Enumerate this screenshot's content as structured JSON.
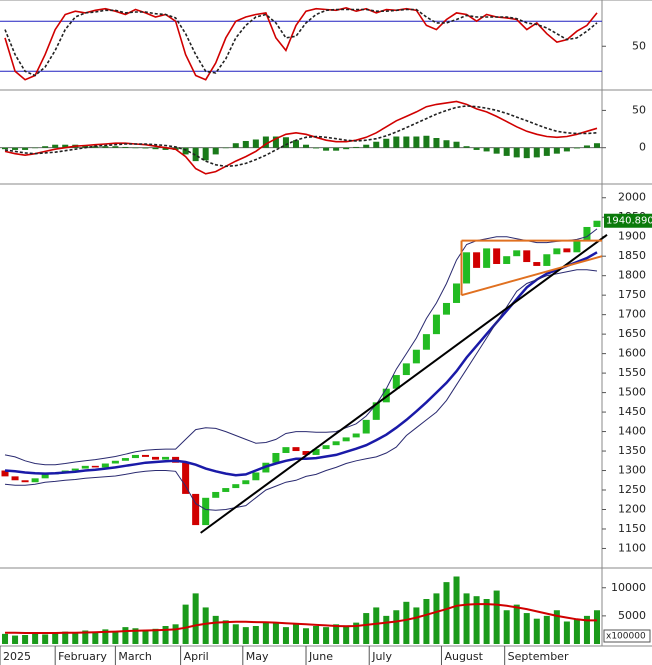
{
  "chart_data": [
    {
      "type": "line",
      "ylim": [
        0,
        103
      ],
      "yticks": [
        50
      ],
      "hlines": [
        20,
        80
      ],
      "hline_color": "#2020c0",
      "series": [
        {
          "color": "#d00000",
          "style": "solid",
          "values": [
            60,
            20,
            10,
            15,
            40,
            70,
            88,
            92,
            90,
            93,
            95,
            92,
            88,
            94,
            90,
            85,
            88,
            80,
            40,
            15,
            10,
            30,
            60,
            80,
            85,
            88,
            90,
            60,
            45,
            75,
            92,
            95,
            94,
            93,
            96,
            92,
            95,
            90,
            94,
            93,
            95,
            93,
            75,
            70,
            82,
            90,
            88,
            80,
            88,
            85,
            84,
            82,
            70,
            78,
            65,
            55,
            58,
            68,
            75,
            90
          ]
        },
        {
          "color": "#222222",
          "style": "dashed",
          "values": [
            70,
            40,
            20,
            15,
            25,
            45,
            70,
            85,
            90,
            91,
            93,
            93,
            90,
            91,
            91,
            89,
            88,
            84,
            65,
            40,
            20,
            18,
            35,
            60,
            75,
            85,
            88,
            78,
            60,
            62,
            78,
            88,
            93,
            94,
            94,
            94,
            94,
            92,
            92,
            93,
            94,
            94,
            85,
            78,
            78,
            82,
            87,
            85,
            85,
            85,
            85,
            83,
            78,
            76,
            72,
            65,
            58,
            60,
            68,
            78
          ]
        }
      ]
    },
    {
      "type": "line",
      "ylim": [
        -46,
        72
      ],
      "yticks": [
        0,
        50
      ],
      "series": [
        {
          "kind": "bar",
          "color": "#1a7a1a",
          "neg_color": "#1a7a1a",
          "values": [
            -2,
            -3,
            -3,
            0,
            2,
            4,
            4,
            4,
            3,
            2,
            2,
            2,
            1,
            0,
            -1,
            -2,
            -3,
            -3,
            -9,
            -18,
            -17,
            -9,
            0,
            6,
            9,
            11,
            15,
            15,
            14,
            10,
            4,
            -1,
            -4,
            -4,
            -2,
            1,
            4,
            8,
            12,
            15,
            15,
            15,
            16,
            13,
            10,
            8,
            2,
            -3,
            -5,
            -8,
            -11,
            -13,
            -14,
            -13,
            -11,
            -8,
            -5,
            -1,
            3,
            6
          ]
        },
        {
          "color": "#d00000",
          "style": "solid",
          "values": [
            -5,
            -8,
            -10,
            -8,
            -5,
            -2,
            0,
            2,
            3,
            4,
            5,
            6,
            6,
            5,
            4,
            2,
            0,
            -2,
            -12,
            -28,
            -35,
            -32,
            -25,
            -18,
            -12,
            -5,
            5,
            12,
            18,
            20,
            18,
            14,
            10,
            8,
            8,
            10,
            14,
            20,
            28,
            36,
            42,
            48,
            55,
            58,
            60,
            62,
            58,
            52,
            48,
            42,
            35,
            28,
            22,
            18,
            15,
            14,
            15,
            18,
            22,
            26
          ]
        },
        {
          "color": "#222222",
          "style": "dashed",
          "values": [
            -3,
            -5,
            -7,
            -8,
            -7,
            -6,
            -4,
            -2,
            0,
            2,
            3,
            4,
            5,
            5,
            5,
            4,
            3,
            1,
            -3,
            -10,
            -18,
            -23,
            -25,
            -24,
            -21,
            -16,
            -10,
            -3,
            4,
            10,
            14,
            15,
            14,
            12,
            10,
            9,
            10,
            12,
            16,
            21,
            27,
            33,
            39,
            45,
            50,
            54,
            56,
            55,
            53,
            50,
            46,
            41,
            36,
            31,
            26,
            22,
            20,
            19,
            19,
            20
          ]
        }
      ]
    },
    {
      "type": "candlestick",
      "ylim": [
        1055,
        2025
      ],
      "yticks": [
        1100,
        1150,
        1200,
        1250,
        1300,
        1350,
        1400,
        1450,
        1500,
        1550,
        1600,
        1650,
        1700,
        1750,
        1800,
        1850,
        1900,
        1950,
        2000
      ],
      "up_color": "#22bb22",
      "down_color": "#d00000",
      "open": [
        1300,
        1285,
        1275,
        1270,
        1280,
        1290,
        1295,
        1300,
        1305,
        1312,
        1308,
        1318,
        1325,
        1332,
        1340,
        1335,
        1328,
        1335,
        1320,
        1240,
        1160,
        1230,
        1245,
        1255,
        1265,
        1275,
        1295,
        1320,
        1345,
        1360,
        1350,
        1340,
        1355,
        1365,
        1375,
        1385,
        1395,
        1430,
        1475,
        1510,
        1545,
        1575,
        1610,
        1650,
        1700,
        1730,
        1780,
        1860,
        1820,
        1870,
        1830,
        1850,
        1865,
        1835,
        1825,
        1855,
        1870,
        1860,
        1890,
        1925
      ],
      "close": [
        1285,
        1275,
        1270,
        1280,
        1290,
        1295,
        1300,
        1305,
        1312,
        1308,
        1318,
        1325,
        1332,
        1340,
        1335,
        1328,
        1335,
        1320,
        1240,
        1160,
        1230,
        1245,
        1255,
        1265,
        1275,
        1295,
        1320,
        1345,
        1360,
        1350,
        1340,
        1355,
        1365,
        1375,
        1385,
        1395,
        1430,
        1475,
        1510,
        1545,
        1575,
        1610,
        1650,
        1700,
        1730,
        1780,
        1860,
        1820,
        1870,
        1830,
        1850,
        1865,
        1835,
        1825,
        1855,
        1870,
        1860,
        1890,
        1925,
        1941
      ],
      "series": [
        {
          "color": "#1a1aa8",
          "width": 2.5,
          "values": [
            1300,
            1298,
            1295,
            1293,
            1292,
            1293,
            1295,
            1297,
            1300,
            1302,
            1305,
            1308,
            1312,
            1316,
            1320,
            1322,
            1324,
            1325,
            1322,
            1315,
            1305,
            1298,
            1292,
            1288,
            1290,
            1300,
            1310,
            1318,
            1325,
            1330,
            1330,
            1332,
            1336,
            1340,
            1348,
            1356,
            1365,
            1378,
            1392,
            1410,
            1430,
            1452,
            1475,
            1500,
            1525,
            1555,
            1590,
            1620,
            1650,
            1680,
            1710,
            1740,
            1770,
            1790,
            1805,
            1815,
            1825,
            1835,
            1845,
            1860
          ]
        },
        {
          "color": "#2a2a70",
          "width": 1,
          "values": [
            1340,
            1335,
            1325,
            1318,
            1315,
            1315,
            1318,
            1322,
            1325,
            1328,
            1332,
            1336,
            1342,
            1348,
            1352,
            1354,
            1355,
            1355,
            1380,
            1405,
            1410,
            1408,
            1400,
            1390,
            1380,
            1370,
            1372,
            1380,
            1395,
            1400,
            1400,
            1398,
            1398,
            1400,
            1410,
            1420,
            1440,
            1470,
            1510,
            1560,
            1600,
            1640,
            1690,
            1730,
            1780,
            1840,
            1880,
            1890,
            1895,
            1900,
            1900,
            1895,
            1890,
            1885,
            1885,
            1888,
            1890,
            1893,
            1900,
            1920
          ]
        },
        {
          "color": "#2a2a70",
          "width": 1,
          "values": [
            1265,
            1262,
            1262,
            1265,
            1270,
            1272,
            1275,
            1277,
            1280,
            1282,
            1284,
            1286,
            1290,
            1295,
            1298,
            1300,
            1300,
            1298,
            1260,
            1215,
            1200,
            1198,
            1200,
            1205,
            1210,
            1230,
            1250,
            1260,
            1270,
            1275,
            1285,
            1290,
            1300,
            1308,
            1318,
            1325,
            1330,
            1335,
            1345,
            1360,
            1390,
            1410,
            1430,
            1450,
            1480,
            1520,
            1560,
            1600,
            1640,
            1680,
            1720,
            1760,
            1780,
            1790,
            1800,
            1805,
            1810,
            1815,
            1815,
            1812
          ]
        }
      ],
      "trendlines": [
        {
          "color": "#000000",
          "width": 2,
          "x": [
            19.5,
            60
          ],
          "y": [
            1140,
            1905
          ]
        },
        {
          "color": "#e07020",
          "width": 2,
          "x": [
            45.5,
            59.5
          ],
          "y": [
            1890,
            1890
          ]
        },
        {
          "color": "#e07020",
          "width": 2,
          "x": [
            45.5,
            59.5
          ],
          "y": [
            1750,
            1850
          ]
        },
        {
          "color": "#e07020",
          "width": 2,
          "x": [
            45.5,
            45.5
          ],
          "y": [
            1750,
            1890
          ]
        }
      ],
      "last_label": "1940.890",
      "last_color": "#0a7a0a"
    },
    {
      "type": "bar",
      "ylim": [
        0,
        12800
      ],
      "yticks": [
        5000,
        10000
      ],
      "unit": "x100000",
      "xlim": [
        -0.5,
        59.5
      ],
      "xticks": [
        {
          "value": -0.5,
          "label": "2025"
        },
        {
          "value": 5,
          "label": "February"
        },
        {
          "value": 11,
          "label": "March"
        },
        {
          "value": 17.5,
          "label": "April"
        },
        {
          "value": 23.7,
          "label": "May"
        },
        {
          "value": 30,
          "label": "June"
        },
        {
          "value": 36.3,
          "label": "July"
        },
        {
          "value": 43.5,
          "label": "August"
        },
        {
          "value": 49.8,
          "label": "September"
        }
      ],
      "series": [
        {
          "kind": "bar",
          "color": "#1a9a1a",
          "neg_color": "#1a9a1a",
          "values": [
            1800,
            1500,
            1600,
            2000,
            1700,
            1900,
            2200,
            2000,
            2400,
            2100,
            2600,
            2300,
            3000,
            2800,
            2500,
            2700,
            3200,
            3500,
            7000,
            9000,
            6500,
            5000,
            4200,
            3500,
            3000,
            3200,
            4000,
            3800,
            3000,
            3500,
            2800,
            3200,
            3000,
            3500,
            3300,
            3800,
            5500,
            6500,
            5000,
            6000,
            7500,
            6500,
            8000,
            9000,
            11000,
            12000,
            9000,
            8500,
            8000,
            9500,
            6000,
            7000,
            5500,
            4500,
            5000,
            6000,
            4000,
            4500,
            5000,
            6000
          ]
        },
        {
          "color": "#d00000",
          "style": "solid",
          "width": 2,
          "values": [
            2000,
            2000,
            1950,
            1950,
            1950,
            1950,
            2000,
            2000,
            2050,
            2100,
            2150,
            2200,
            2300,
            2350,
            2400,
            2450,
            2500,
            2600,
            2900,
            3300,
            3600,
            3800,
            3900,
            3950,
            3950,
            3900,
            3850,
            3800,
            3700,
            3600,
            3500,
            3400,
            3300,
            3200,
            3150,
            3200,
            3400,
            3600,
            3800,
            4000,
            4300,
            4700,
            5200,
            5700,
            6200,
            6800,
            7000,
            7100,
            7100,
            7000,
            6800,
            6500,
            6200,
            5800,
            5400,
            5000,
            4700,
            4400,
            4200,
            4200
          ]
        }
      ]
    }
  ]
}
